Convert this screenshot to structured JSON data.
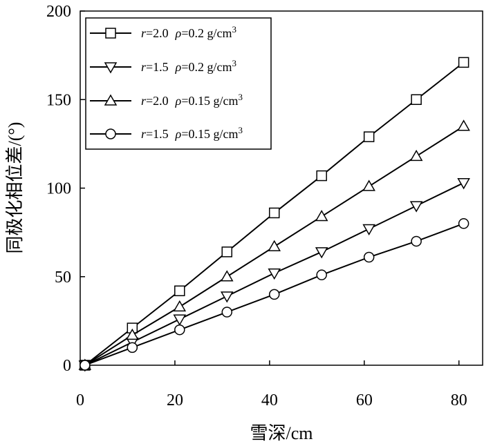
{
  "chart_data": {
    "type": "line",
    "xlabel": "雪深/cm",
    "ylabel": "同极化相位差/(°)",
    "xlim": [
      0,
      85
    ],
    "ylim": [
      0,
      200
    ],
    "xticks": [
      0,
      20,
      40,
      60,
      80
    ],
    "yticks": [
      0,
      50,
      100,
      150,
      200
    ],
    "xtick_labels": [
      "0",
      "20",
      "40",
      "60",
      "80"
    ],
    "ytick_labels": [
      "0",
      "50",
      "100",
      "150",
      "200"
    ],
    "grid": false,
    "legend_position": "top-left",
    "x": [
      1,
      11,
      21,
      31,
      41,
      51,
      61,
      71,
      81
    ],
    "series": [
      {
        "name": "r=2.0 ρ=0.2 g/cm³",
        "r_label": "r",
        "r_value": "=2.0",
        "rho_label": "ρ",
        "rho_value": "=0.2 g/cm",
        "unit_exp": "3",
        "marker": "square",
        "values": [
          0,
          21,
          42,
          64,
          86,
          107,
          129,
          150,
          171
        ]
      },
      {
        "name": "r=1.5 ρ=0.2 g/cm³",
        "r_label": "r",
        "r_value": "=1.5",
        "rho_label": "ρ",
        "rho_value": "=0.2 g/cm",
        "unit_exp": "3",
        "marker": "triangle-down",
        "values": [
          0,
          13,
          26,
          39,
          52,
          64,
          77,
          90,
          103
        ]
      },
      {
        "name": "r=2.0 ρ=0.15 g/cm³",
        "r_label": "r",
        "r_value": "=2.0",
        "rho_label": "ρ",
        "rho_value": "=0.15 g/cm",
        "unit_exp": "3",
        "marker": "triangle-up",
        "values": [
          0,
          17,
          33,
          50,
          67,
          84,
          101,
          118,
          135
        ]
      },
      {
        "name": "r=1.5 ρ=0.15 g/cm³",
        "r_label": "r",
        "r_value": "=1.5",
        "rho_label": "ρ",
        "rho_value": "=0.15 g/cm",
        "unit_exp": "3",
        "marker": "circle",
        "values": [
          0,
          10,
          20,
          30,
          40,
          51,
          61,
          70,
          80
        ]
      }
    ]
  }
}
